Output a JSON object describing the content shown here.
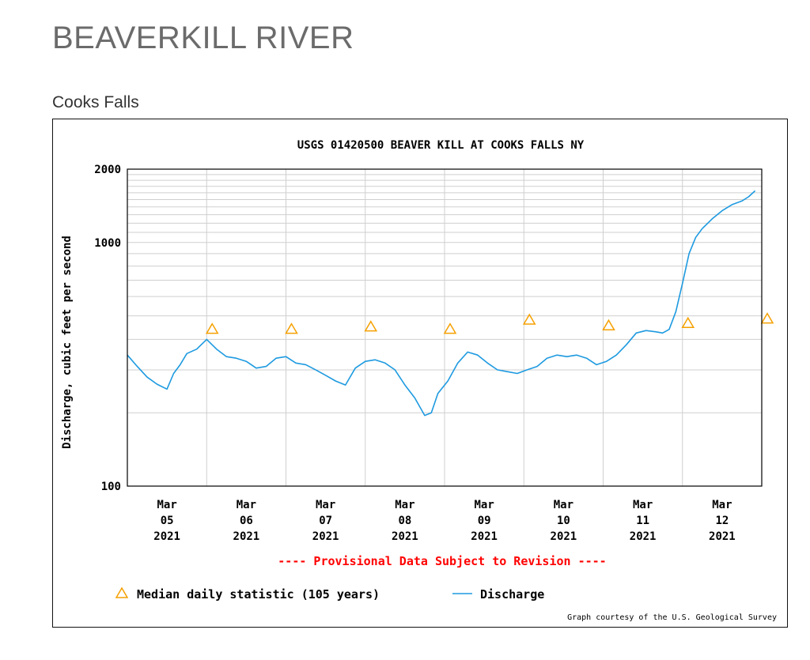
{
  "page": {
    "title": "BEAVERKILL RIVER",
    "subtitle": "Cooks Falls"
  },
  "chart_data": {
    "type": "line",
    "title": "USGS 01420500 BEAVER KILL AT COOKS FALLS NY",
    "ylabel": "Discharge, cubic feet per second",
    "xlabel": "",
    "yscale": "log",
    "ylim": [
      100,
      2000
    ],
    "y_tick_labels": [
      "100",
      "1000",
      "2000"
    ],
    "xlim": [
      "2021-03-04T12:00",
      "2021-03-12T12:00"
    ],
    "x_tick_labels": [
      {
        "month": "Mar",
        "day": "05",
        "year": "2021"
      },
      {
        "month": "Mar",
        "day": "06",
        "year": "2021"
      },
      {
        "month": "Mar",
        "day": "07",
        "year": "2021"
      },
      {
        "month": "Mar",
        "day": "08",
        "year": "2021"
      },
      {
        "month": "Mar",
        "day": "09",
        "year": "2021"
      },
      {
        "month": "Mar",
        "day": "10",
        "year": "2021"
      },
      {
        "month": "Mar",
        "day": "11",
        "year": "2021"
      },
      {
        "month": "Mar",
        "day": "12",
        "year": "2021"
      }
    ],
    "grid": true,
    "series": [
      {
        "name": "Discharge",
        "color": "#1e9ae0",
        "x": [
          "2021-03-04T12:00",
          "2021-03-04T15:00",
          "2021-03-04T18:00",
          "2021-03-04T21:00",
          "2021-03-05T00:00",
          "2021-03-05T02:00",
          "2021-03-05T04:00",
          "2021-03-05T06:00",
          "2021-03-05T09:00",
          "2021-03-05T12:00",
          "2021-03-05T15:00",
          "2021-03-05T18:00",
          "2021-03-05T21:00",
          "2021-03-06T00:00",
          "2021-03-06T03:00",
          "2021-03-06T06:00",
          "2021-03-06T09:00",
          "2021-03-06T12:00",
          "2021-03-06T15:00",
          "2021-03-06T18:00",
          "2021-03-06T21:00",
          "2021-03-07T00:00",
          "2021-03-07T03:00",
          "2021-03-07T06:00",
          "2021-03-07T09:00",
          "2021-03-07T12:00",
          "2021-03-07T15:00",
          "2021-03-07T18:00",
          "2021-03-07T21:00",
          "2021-03-08T00:00",
          "2021-03-08T03:00",
          "2021-03-08T06:00",
          "2021-03-08T08:00",
          "2021-03-08T10:00",
          "2021-03-08T13:00",
          "2021-03-08T16:00",
          "2021-03-08T19:00",
          "2021-03-08T22:00",
          "2021-03-09T01:00",
          "2021-03-09T04:00",
          "2021-03-09T07:00",
          "2021-03-09T10:00",
          "2021-03-09T13:00",
          "2021-03-09T16:00",
          "2021-03-09T19:00",
          "2021-03-09T22:00",
          "2021-03-10T01:00",
          "2021-03-10T04:00",
          "2021-03-10T07:00",
          "2021-03-10T10:00",
          "2021-03-10T13:00",
          "2021-03-10T16:00",
          "2021-03-10T19:00",
          "2021-03-10T22:00",
          "2021-03-11T01:00",
          "2021-03-11T04:00",
          "2021-03-11T06:00",
          "2021-03-11T08:00",
          "2021-03-11T10:00",
          "2021-03-11T12:00",
          "2021-03-11T14:00",
          "2021-03-11T16:00",
          "2021-03-11T18:00",
          "2021-03-11T21:00",
          "2021-03-12T00:00",
          "2021-03-12T03:00",
          "2021-03-12T06:00",
          "2021-03-12T08:00",
          "2021-03-12T10:00"
        ],
        "values": [
          345,
          310,
          280,
          262,
          250,
          290,
          315,
          350,
          365,
          400,
          365,
          340,
          335,
          325,
          305,
          310,
          335,
          340,
          320,
          315,
          300,
          285,
          270,
          260,
          305,
          325,
          330,
          320,
          300,
          260,
          230,
          195,
          200,
          240,
          270,
          320,
          355,
          345,
          320,
          300,
          295,
          290,
          300,
          310,
          335,
          345,
          340,
          345,
          335,
          315,
          325,
          345,
          380,
          425,
          435,
          430,
          425,
          440,
          520,
          680,
          900,
          1050,
          1140,
          1250,
          1350,
          1430,
          1480,
          1540,
          1630
        ]
      },
      {
        "name": "Median daily statistic (105 years)",
        "color": "#f5a000",
        "marker": "triangle",
        "x": [
          "2021-03-05",
          "2021-03-06",
          "2021-03-07",
          "2021-03-08",
          "2021-03-09",
          "2021-03-10",
          "2021-03-11",
          "2021-03-12"
        ],
        "values": [
          440,
          440,
          450,
          440,
          480,
          455,
          465,
          485
        ]
      }
    ],
    "legend": {
      "position": "bottom-left",
      "median_label": "Median daily statistic (105 years)",
      "discharge_label": "Discharge"
    },
    "provisional_note": "---- Provisional Data Subject to Revision ----",
    "credit": "Graph courtesy of the U.S. Geological Survey"
  }
}
